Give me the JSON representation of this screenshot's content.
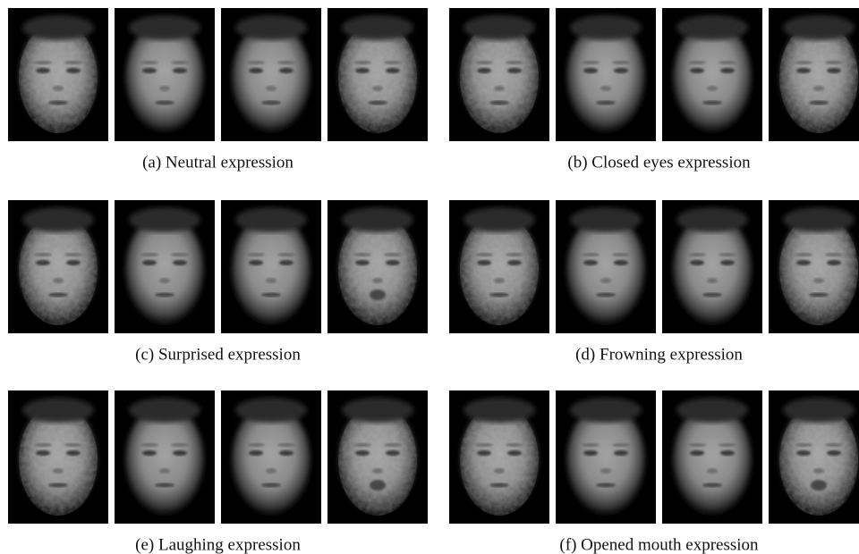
{
  "panels": [
    {
      "caption": "(a) Neutral expression"
    },
    {
      "caption": "(b) Closed eyes expression"
    },
    {
      "caption": "(c) Surprised expression"
    },
    {
      "caption": "(d) Frowning expression"
    },
    {
      "caption": "(e) Laughing expression"
    },
    {
      "caption": "(f) Opened mouth expression"
    }
  ]
}
